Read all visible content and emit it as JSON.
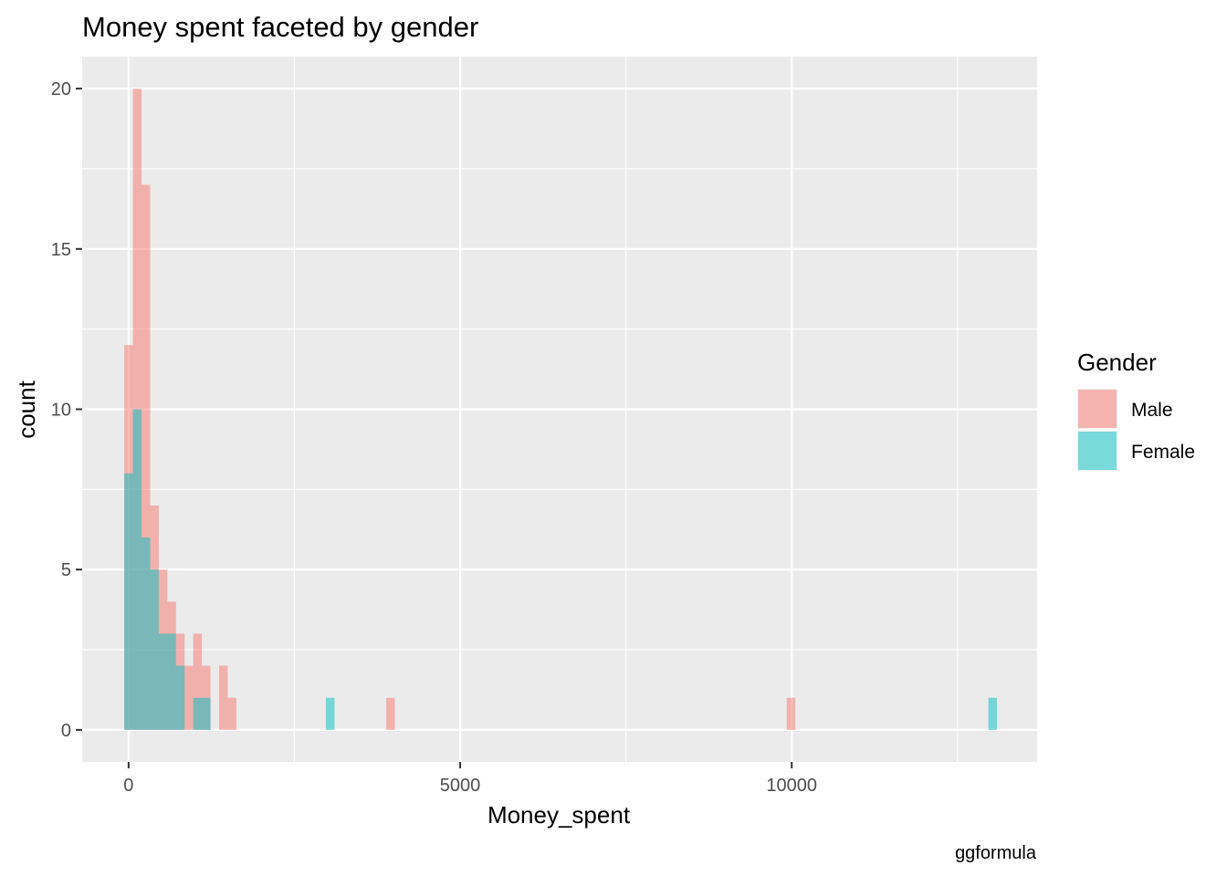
{
  "chart_data": {
    "type": "histogram",
    "title": "Money spent faceted by gender",
    "xlabel": "Money_spent",
    "ylabel": "count",
    "caption": "ggformula",
    "xlim": [
      -700,
      13700
    ],
    "ylim": [
      -1,
      21
    ],
    "x_ticks": [
      0,
      5000,
      10000
    ],
    "x_tick_labels": [
      "0",
      "5000",
      "10000"
    ],
    "y_ticks": [
      0,
      5,
      10,
      15,
      20
    ],
    "y_tick_labels": [
      "0",
      "5",
      "10",
      "15",
      "20"
    ],
    "x_minor_ticks": [
      2500,
      7500,
      12500
    ],
    "y_minor_ticks": [
      2.5,
      7.5,
      12.5,
      17.5
    ],
    "bin_width": 130,
    "grid": true,
    "background": "#EBEBEB",
    "legend": {
      "title": "Gender",
      "position": "right"
    },
    "series": [
      {
        "name": "Male",
        "color": "#F8766D",
        "opacity": 0.5,
        "bins": [
          {
            "x": 0,
            "count": 12
          },
          {
            "x": 130,
            "count": 20
          },
          {
            "x": 260,
            "count": 17
          },
          {
            "x": 390,
            "count": 7
          },
          {
            "x": 520,
            "count": 5
          },
          {
            "x": 650,
            "count": 4
          },
          {
            "x": 780,
            "count": 3
          },
          {
            "x": 910,
            "count": 2
          },
          {
            "x": 1040,
            "count": 3
          },
          {
            "x": 1170,
            "count": 2
          },
          {
            "x": 1430,
            "count": 2
          },
          {
            "x": 1560,
            "count": 1
          },
          {
            "x": 3950,
            "count": 1
          },
          {
            "x": 9990,
            "count": 1
          }
        ]
      },
      {
        "name": "Female",
        "color": "#00BFC4",
        "opacity": 0.5,
        "bins": [
          {
            "x": 0,
            "count": 8
          },
          {
            "x": 130,
            "count": 10
          },
          {
            "x": 260,
            "count": 6
          },
          {
            "x": 390,
            "count": 5
          },
          {
            "x": 520,
            "count": 3
          },
          {
            "x": 650,
            "count": 3
          },
          {
            "x": 780,
            "count": 2
          },
          {
            "x": 1040,
            "count": 1
          },
          {
            "x": 1170,
            "count": 1
          },
          {
            "x": 3040,
            "count": 1
          },
          {
            "x": 13030,
            "count": 1
          }
        ]
      }
    ]
  }
}
